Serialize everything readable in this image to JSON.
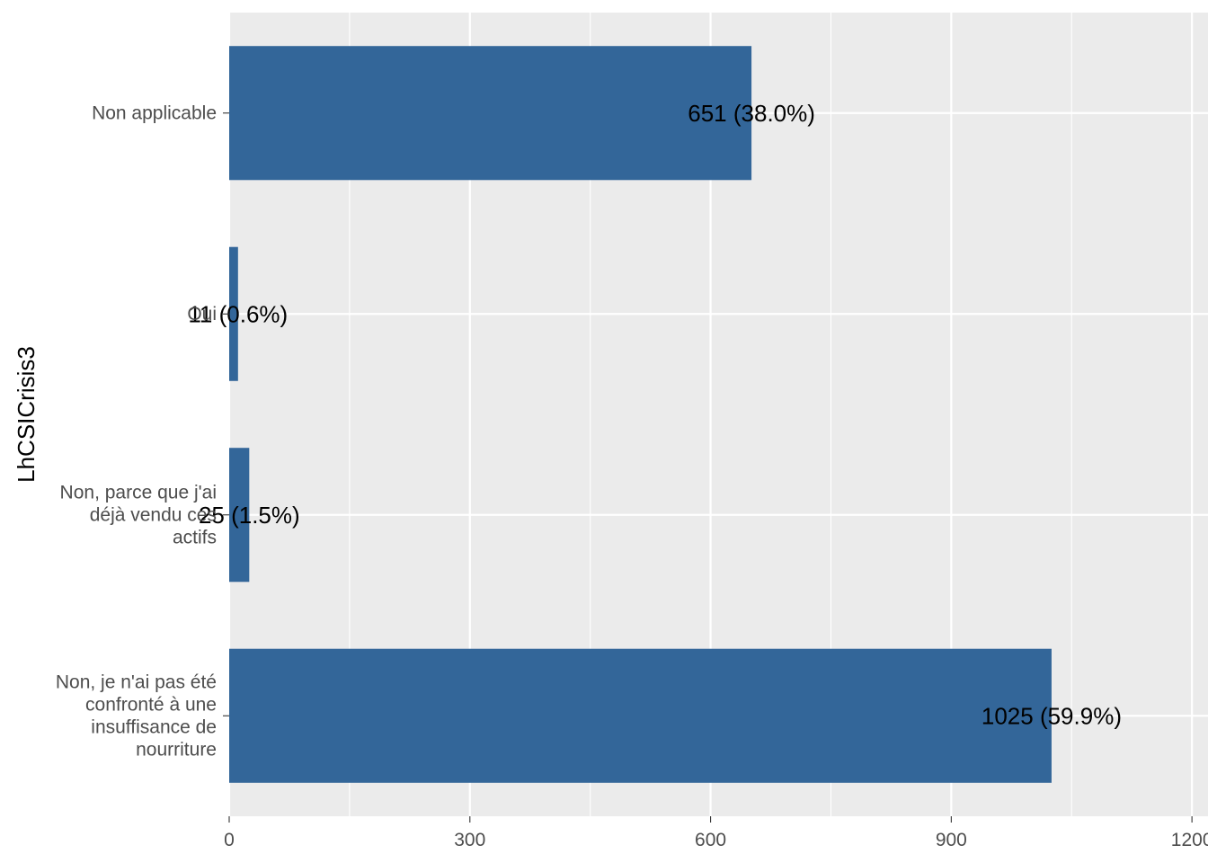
{
  "chart_data": {
    "type": "bar",
    "orientation": "horizontal",
    "ylabel": "LhCSICrisis3",
    "xlabel": "",
    "categories": [
      [
        "Non applicable"
      ],
      [
        "Oui"
      ],
      [
        "Non, parce que j'ai",
        "déjà vendu ces",
        "actifs"
      ],
      [
        "Non, je n'ai pas été",
        "confronté à une",
        "insuffisance de",
        "nourriture"
      ]
    ],
    "values": [
      651,
      11,
      25,
      1025
    ],
    "data_labels": [
      "651 (38.0%)",
      "11 (0.6%)",
      "25 (1.5%)",
      "1025 (59.9%)"
    ],
    "x_ticks": [
      0,
      300,
      600,
      900,
      1200
    ],
    "x_tick_labels": [
      "0",
      "300",
      "600",
      "900",
      "1200"
    ],
    "xlim": [
      0,
      1200
    ],
    "grid": true,
    "colors": {
      "bar": "#336699",
      "panel": "#EBEBEB",
      "grid": "#FFFFFF"
    }
  }
}
